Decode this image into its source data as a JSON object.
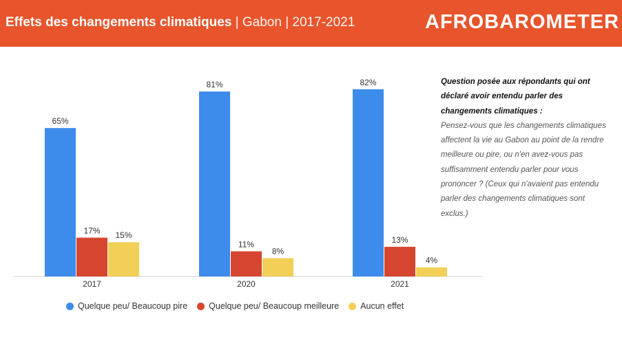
{
  "header": {
    "title_bold": "Effets des changements climatiques",
    "title_rest": " | Gabon | 2017-2021",
    "logo": "AFROBAROMETER"
  },
  "question": {
    "heading": "Question posée aux répondants qui ont déclaré avoir entendu parler des changements climatiques :",
    "body": "Pensez-vous que les changements climatiques affectent la vie au Gabon au point de la rendre meilleure ou pire, ou n'en avez-vous pas suffisamment entendu parler pour vous prononcer ? (Ceux qui n'avaient pas entendu parler des changements climatiques sont exclus.)"
  },
  "chart_data": {
    "type": "bar",
    "title": "Effets des changements climatiques | Gabon | 2017-2021",
    "categories": [
      "2017",
      "2020",
      "2021"
    ],
    "series": [
      {
        "name": "Quelque peu/ Beaucoup pire",
        "color": "#3D8BEB",
        "values": [
          65,
          81,
          82
        ]
      },
      {
        "name": "Quelque peu/ Beaucoup meilleure",
        "color": "#D5452F",
        "values": [
          17,
          11,
          13
        ]
      },
      {
        "name": "Aucun effet",
        "color": "#F2CF56",
        "values": [
          15,
          8,
          4
        ]
      }
    ],
    "value_suffix": "%",
    "ylim": [
      0,
      100
    ],
    "legend": "bottom"
  }
}
